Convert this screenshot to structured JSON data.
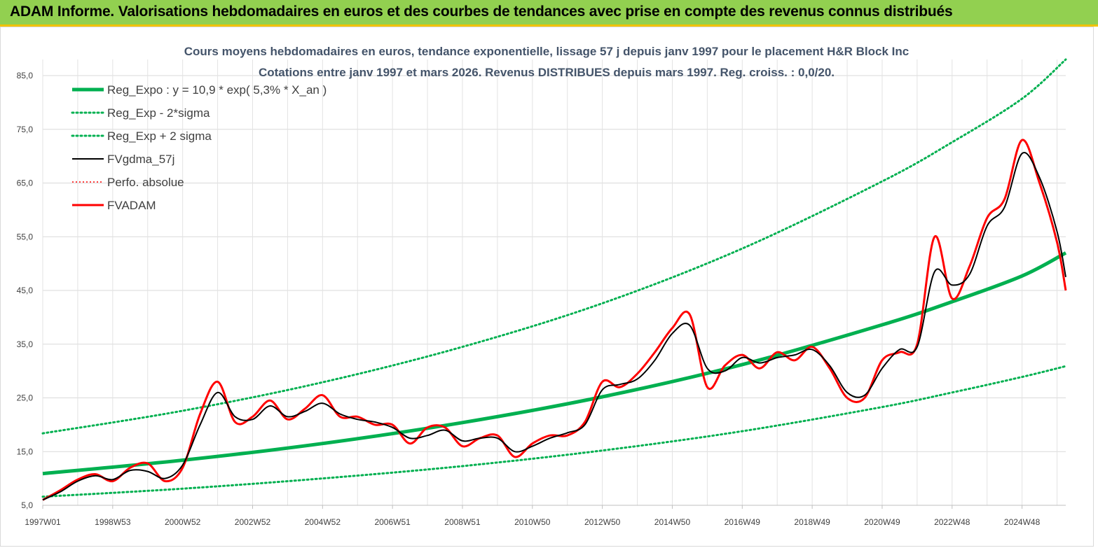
{
  "banner": {
    "title": "ADAM Informe. Valorisations hebdomadaires en euros et des courbes de tendances avec prise en compte des revenus connus distribués"
  },
  "colors": {
    "banner_bg": "#92d050",
    "banner_border": "#f2c200",
    "reg_expo": "#00b050",
    "fvadam": "#ff0000",
    "fvgdma": "#000000",
    "title": "#44546a"
  },
  "chart_data": {
    "type": "line",
    "title": "Cours moyens hebdomadaires en euros, tendance exponentielle, lissage 57 j depuis janv 1997 pour le placement H&R Block Inc",
    "subtitle": "Cotations entre janv 1997 et mars 2026. Revenus DISTRIBUES depuis mars 1997. Reg. croiss. : 0,0/20.",
    "xlabel": "",
    "ylabel": "",
    "ylim": [
      5,
      88
    ],
    "yticks": [
      "5,0",
      "15,0",
      "25,0",
      "35,0",
      "45,0",
      "55,0",
      "65,0",
      "75,0",
      "85,0"
    ],
    "yticks_values": [
      5,
      15,
      25,
      35,
      45,
      55,
      65,
      75,
      85
    ],
    "xlim": [
      1997.0,
      2026.25
    ],
    "xticks": [
      {
        "label": "1997W01",
        "x": 1997.0
      },
      {
        "label": "1998W53",
        "x": 1999.0
      },
      {
        "label": "2000W52",
        "x": 2001.0
      },
      {
        "label": "2002W52",
        "x": 2003.0
      },
      {
        "label": "2004W52",
        "x": 2005.0
      },
      {
        "label": "2006W51",
        "x": 2007.0
      },
      {
        "label": "2008W51",
        "x": 2009.0
      },
      {
        "label": "2010W50",
        "x": 2011.0
      },
      {
        "label": "2012W50",
        "x": 2013.0
      },
      {
        "label": "2014W50",
        "x": 2015.0
      },
      {
        "label": "2016W49",
        "x": 2017.0
      },
      {
        "label": "2018W49",
        "x": 2019.0
      },
      {
        "label": "2020W49",
        "x": 2021.0
      },
      {
        "label": "2022W48",
        "x": 2023.0
      },
      {
        "label": "2024W48",
        "x": 2025.0
      }
    ],
    "grid": true,
    "legend_position": "top-left",
    "series": [
      {
        "name": "Reg_Expo : y = 10,9 * exp( 5,3% *  X_an )",
        "style": "solid-thick",
        "color": "#00b050",
        "x": [
          1997.0,
          2001.0,
          2005.0,
          2009.0,
          2013.0,
          2017.0,
          2021.0,
          2023.0,
          2025.0,
          2026.25
        ],
        "y": [
          10.9,
          13.4,
          16.5,
          20.4,
          25.2,
          31.2,
          38.6,
          42.9,
          47.7,
          52.0
        ]
      },
      {
        "name": "Reg_Exp - 2*sigma",
        "style": "dotted",
        "color": "#00b050",
        "x": [
          1997.0,
          2001.0,
          2005.0,
          2009.0,
          2013.0,
          2017.0,
          2021.0,
          2023.0,
          2025.0,
          2026.25
        ],
        "y": [
          6.6,
          8.1,
          10.0,
          12.3,
          15.2,
          18.8,
          23.3,
          26.0,
          28.9,
          30.9
        ]
      },
      {
        "name": "Reg_Exp + 2 sigma",
        "style": "dotted",
        "color": "#00b050",
        "x": [
          1997.0,
          2001.0,
          2005.0,
          2009.0,
          2013.0,
          2017.0,
          2021.0,
          2023.0,
          2025.0,
          2026.25
        ],
        "y": [
          18.4,
          22.6,
          27.9,
          34.5,
          42.6,
          52.8,
          65.3,
          72.6,
          80.7,
          88.0
        ]
      },
      {
        "name": "FVgdma_57j",
        "style": "solid-thin",
        "color": "#000000",
        "x": [
          1997.0,
          1997.5,
          1998.0,
          1998.5,
          1999.0,
          1999.5,
          2000.0,
          2000.5,
          2001.0,
          2001.5,
          2002.0,
          2002.5,
          2003.0,
          2003.5,
          2004.0,
          2004.5,
          2005.0,
          2005.5,
          2006.0,
          2006.5,
          2007.0,
          2007.5,
          2008.0,
          2008.5,
          2009.0,
          2009.5,
          2010.0,
          2010.5,
          2011.0,
          2011.5,
          2012.0,
          2012.5,
          2013.0,
          2013.5,
          2014.0,
          2014.5,
          2015.0,
          2015.5,
          2016.0,
          2016.5,
          2017.0,
          2017.5,
          2018.0,
          2018.5,
          2019.0,
          2019.5,
          2020.0,
          2020.5,
          2021.0,
          2021.5,
          2022.0,
          2022.5,
          2023.0,
          2023.5,
          2024.0,
          2024.5,
          2025.0,
          2025.5,
          2026.0,
          2026.25
        ],
        "y": [
          6.0,
          7.5,
          9.5,
          10.5,
          9.8,
          11.5,
          11.3,
          10.0,
          12.5,
          20.0,
          26.0,
          21.5,
          21.0,
          23.5,
          21.5,
          22.5,
          24.0,
          22.0,
          21.0,
          20.5,
          19.5,
          17.5,
          18.0,
          19.0,
          17.0,
          17.5,
          17.5,
          15.0,
          16.0,
          17.5,
          18.5,
          20.0,
          26.5,
          27.5,
          28.5,
          32.0,
          37.0,
          38.5,
          30.5,
          30.0,
          32.5,
          31.5,
          32.5,
          33.0,
          34.0,
          31.0,
          26.0,
          25.5,
          30.5,
          34.0,
          34.5,
          48.5,
          46.0,
          48.0,
          57.0,
          60.5,
          70.5,
          66.0,
          56.0,
          47.5
        ]
      },
      {
        "name": "Perfo. absolue",
        "style": "dotted-thin",
        "color": "#ff0000",
        "x": [
          1997.0,
          1997.5,
          1998.0,
          1998.5,
          1999.0,
          1999.5,
          2000.0,
          2000.5,
          2001.0,
          2001.5,
          2002.0,
          2002.5,
          2003.0,
          2003.5,
          2004.0,
          2004.5,
          2005.0,
          2005.5,
          2006.0,
          2006.5,
          2007.0,
          2007.5,
          2008.0,
          2008.5,
          2009.0,
          2009.5,
          2010.0,
          2010.5,
          2011.0,
          2011.5,
          2012.0,
          2012.5,
          2013.0,
          2013.5,
          2014.0,
          2014.5,
          2015.0,
          2015.5,
          2016.0,
          2016.5,
          2017.0,
          2017.5,
          2018.0,
          2018.5,
          2019.0,
          2019.5,
          2020.0,
          2020.5,
          2021.0,
          2021.5,
          2022.0,
          2022.5,
          2023.0,
          2023.5,
          2024.0,
          2024.5,
          2025.0,
          2025.5,
          2026.0,
          2026.25
        ],
        "y": [
          6.0,
          7.8,
          9.8,
          10.8,
          9.5,
          12.0,
          12.8,
          9.5,
          12.0,
          22.0,
          28.0,
          20.5,
          21.5,
          24.5,
          21.0,
          23.0,
          25.5,
          21.5,
          21.5,
          20.0,
          20.0,
          16.5,
          19.5,
          19.5,
          16.0,
          17.5,
          18.0,
          14.0,
          16.5,
          18.0,
          18.0,
          20.5,
          28.0,
          27.0,
          29.5,
          33.5,
          38.0,
          40.5,
          27.0,
          31.0,
          33.0,
          30.5,
          33.5,
          32.0,
          34.5,
          30.5,
          25.0,
          25.0,
          32.0,
          33.5,
          35.0,
          55.0,
          43.5,
          49.5,
          58.5,
          62.0,
          73.0,
          65.0,
          54.0,
          45.0
        ]
      },
      {
        "name": "FVADAM",
        "style": "solid-thick",
        "color": "#ff0000",
        "x": [
          1997.0,
          1997.5,
          1998.0,
          1998.5,
          1999.0,
          1999.5,
          2000.0,
          2000.5,
          2001.0,
          2001.5,
          2002.0,
          2002.5,
          2003.0,
          2003.5,
          2004.0,
          2004.5,
          2005.0,
          2005.5,
          2006.0,
          2006.5,
          2007.0,
          2007.5,
          2008.0,
          2008.5,
          2009.0,
          2009.5,
          2010.0,
          2010.5,
          2011.0,
          2011.5,
          2012.0,
          2012.5,
          2013.0,
          2013.5,
          2014.0,
          2014.5,
          2015.0,
          2015.5,
          2016.0,
          2016.5,
          2017.0,
          2017.5,
          2018.0,
          2018.5,
          2019.0,
          2019.5,
          2020.0,
          2020.5,
          2021.0,
          2021.5,
          2022.0,
          2022.5,
          2023.0,
          2023.5,
          2024.0,
          2024.5,
          2025.0,
          2025.5,
          2026.0,
          2026.25
        ],
        "y": [
          6.0,
          7.8,
          9.8,
          10.8,
          9.5,
          12.0,
          12.8,
          9.5,
          12.0,
          22.0,
          28.0,
          20.5,
          21.5,
          24.5,
          21.0,
          23.0,
          25.5,
          21.5,
          21.5,
          20.0,
          20.0,
          16.5,
          19.5,
          19.5,
          16.0,
          17.5,
          18.0,
          14.0,
          16.5,
          18.0,
          18.0,
          20.5,
          28.0,
          27.0,
          29.5,
          33.5,
          38.0,
          40.5,
          27.0,
          31.0,
          33.0,
          30.5,
          33.5,
          32.0,
          34.5,
          30.5,
          25.0,
          25.0,
          32.0,
          33.5,
          35.0,
          55.0,
          43.5,
          49.5,
          58.5,
          62.0,
          73.0,
          65.0,
          54.0,
          45.0
        ]
      }
    ]
  }
}
